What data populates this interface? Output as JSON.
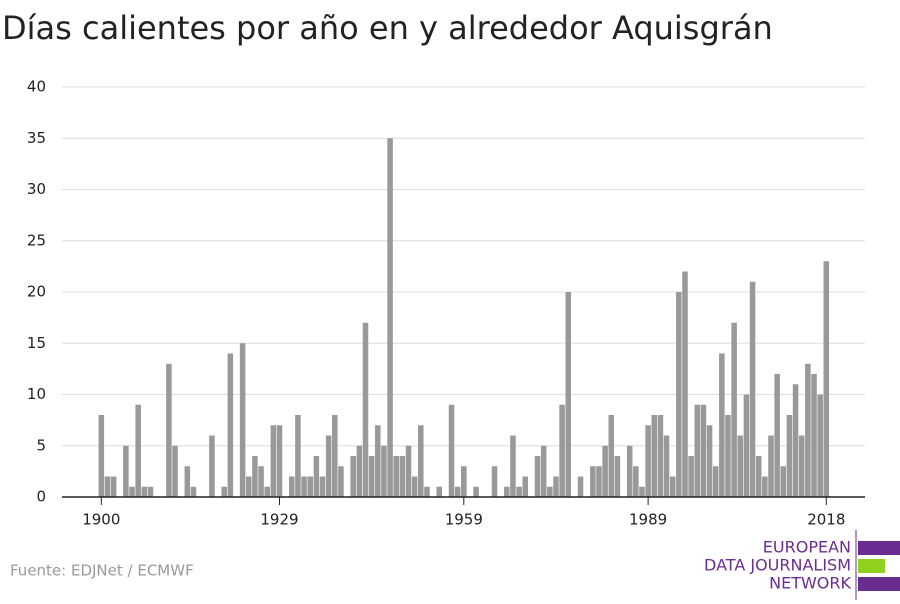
{
  "chart_data": {
    "type": "bar",
    "title": "Días calientes por año en y alrededor Aquisgrán",
    "source": "Fuente: EDJNet / ECMWF",
    "logo": [
      "EUROPEAN",
      "DATA JOURNALISM",
      "NETWORK"
    ],
    "color": "#999999",
    "grid": true,
    "x": [
      1900,
      1901,
      1902,
      1903,
      1904,
      1905,
      1906,
      1907,
      1908,
      1909,
      1910,
      1911,
      1912,
      1913,
      1914,
      1915,
      1916,
      1917,
      1918,
      1919,
      1920,
      1921,
      1922,
      1923,
      1924,
      1925,
      1926,
      1927,
      1928,
      1929,
      1930,
      1931,
      1932,
      1933,
      1934,
      1935,
      1936,
      1937,
      1938,
      1939,
      1940,
      1941,
      1942,
      1943,
      1944,
      1945,
      1946,
      1947,
      1948,
      1949,
      1950,
      1951,
      1952,
      1953,
      1954,
      1955,
      1956,
      1957,
      1958,
      1959,
      1960,
      1961,
      1962,
      1963,
      1964,
      1965,
      1966,
      1967,
      1968,
      1969,
      1970,
      1971,
      1972,
      1973,
      1974,
      1975,
      1976,
      1977,
      1978,
      1979,
      1980,
      1981,
      1982,
      1983,
      1984,
      1985,
      1986,
      1987,
      1988,
      1989,
      1990,
      1991,
      1992,
      1993,
      1994,
      1995,
      1996,
      1997,
      1998,
      1999,
      2000,
      2001,
      2002,
      2003,
      2004,
      2005,
      2006,
      2007,
      2008,
      2009,
      2010,
      2011,
      2012,
      2013,
      2014,
      2015,
      2016,
      2017,
      2018
    ],
    "values": [
      8,
      2,
      2,
      0,
      5,
      1,
      9,
      1,
      1,
      0,
      0,
      13,
      5,
      0,
      3,
      1,
      0,
      0,
      6,
      0,
      1,
      14,
      0,
      15,
      2,
      4,
      3,
      1,
      7,
      7,
      0,
      2,
      8,
      2,
      2,
      4,
      2,
      6,
      8,
      3,
      0,
      4,
      5,
      17,
      4,
      7,
      5,
      35,
      4,
      4,
      5,
      2,
      7,
      1,
      0,
      1,
      0,
      9,
      1,
      3,
      0,
      1,
      0,
      0,
      3,
      0,
      1,
      6,
      1,
      2,
      0,
      4,
      5,
      1,
      2,
      9,
      20,
      0,
      2,
      0,
      3,
      3,
      5,
      8,
      4,
      0,
      5,
      3,
      1,
      7,
      8,
      8,
      6,
      2,
      20,
      22,
      4,
      9,
      9,
      7,
      3,
      14,
      8,
      17,
      6,
      10,
      21,
      4,
      2,
      6,
      12,
      3,
      8,
      11,
      6,
      13,
      12,
      10,
      23
    ],
    "xlim": [
      1893.6,
      2024.3
    ],
    "xticks": [
      1900,
      1929,
      1959,
      1989,
      2018
    ],
    "ylim": [
      0,
      40
    ],
    "yticks": [
      0,
      5,
      10,
      15,
      20,
      25,
      30,
      35,
      40
    ]
  }
}
